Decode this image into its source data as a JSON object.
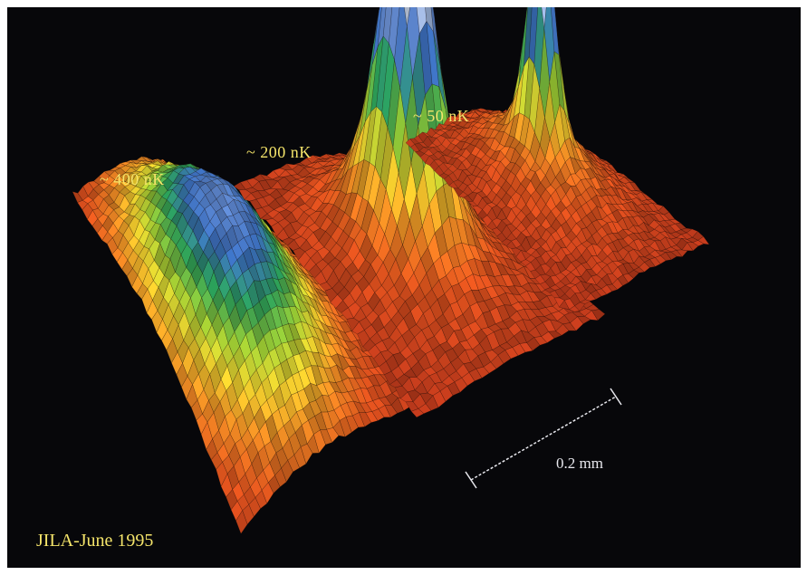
{
  "labels": {
    "temp_400": "~ 400 nK",
    "temp_200": "~ 200 nK",
    "temp_50": "~ 50 nK",
    "scale": "0.2 mm",
    "credit": "JILA-June 1995"
  },
  "colors": {
    "background": "#07070a",
    "label_yellow": "#f4e46a",
    "scale_white": "#e8e8ee",
    "colormap": [
      "#c13a1c",
      "#e2541e",
      "#f08a24",
      "#f5d22e",
      "#9ccd34",
      "#2aa05a",
      "#3b6fbf",
      "#6a90d6",
      "#dfe6f2"
    ]
  },
  "surfaces": [
    {
      "name": "surface-400nk",
      "peak_relative_height": 0.33,
      "width_relative": 1.0
    },
    {
      "name": "surface-200nk",
      "peak_relative_height": 1.0,
      "width_relative": 0.55
    },
    {
      "name": "surface-50nk",
      "peak_relative_height": 0.95,
      "width_relative": 0.3
    }
  ]
}
